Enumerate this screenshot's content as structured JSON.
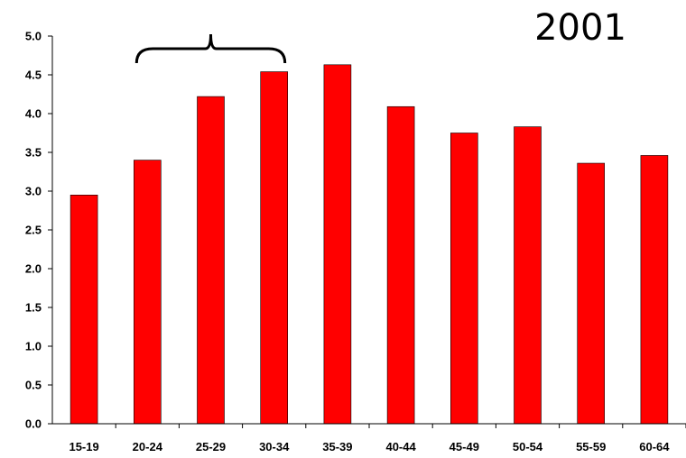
{
  "chart_data": {
    "type": "bar",
    "title": "2001",
    "categories": [
      "15-19",
      "20-24",
      "25-29",
      "30-34",
      "35-39",
      "40-44",
      "45-49",
      "50-54",
      "55-59",
      "60-64"
    ],
    "values": [
      2.95,
      3.4,
      4.22,
      4.54,
      4.63,
      4.09,
      3.75,
      3.83,
      3.36,
      3.46
    ],
    "ylim": [
      0,
      5.0
    ],
    "yticks": [
      "0.0",
      "0.5",
      "1.0",
      "1.5",
      "2.0",
      "2.5",
      "3.0",
      "3.5",
      "4.0",
      "4.5",
      "5.0"
    ],
    "bar_color": "#ff0000",
    "grid": false,
    "annotation": "curly brace spanning 20-24 to 30-34"
  }
}
